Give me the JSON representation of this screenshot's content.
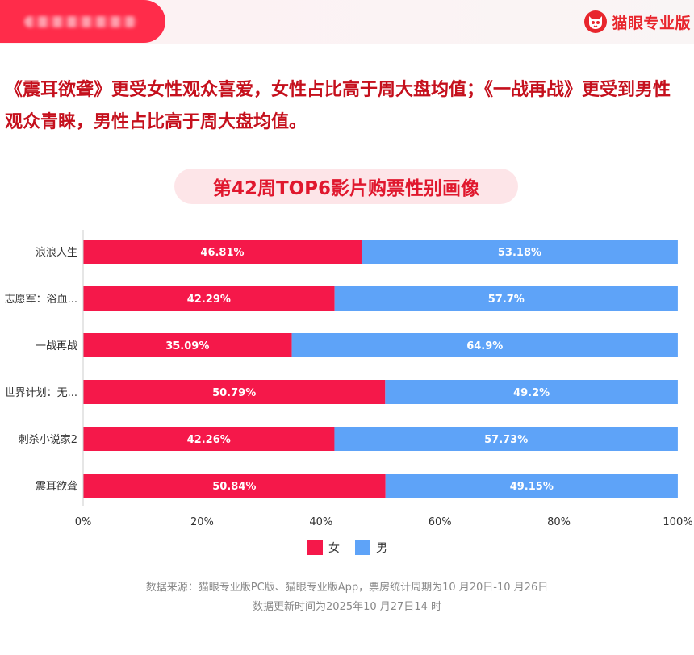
{
  "header": {
    "brand": "猫眼专业版",
    "brand_icon": "cat-eye-logo-icon",
    "brand_color": "#e8262d",
    "banner_color": "#ff2c4a"
  },
  "headline": "《震耳欲聋》更受女性观众喜爱，女性占比高于周大盘均值；《一战再战》更受到男性观众青睐，男性占比高于周大盘均值。",
  "chart_data": {
    "type": "bar",
    "orientation": "horizontal",
    "stacked": true,
    "title": "第42周TOP6影片购票性别画像",
    "categories": [
      "浪浪人生",
      "志愿军：浴血...",
      "一战再战",
      "世界计划：无...",
      "刺杀小说家2",
      "震耳欲聋"
    ],
    "series": [
      {
        "name": "女",
        "color": "#f5184a",
        "values": [
          46.81,
          42.29,
          35.09,
          50.79,
          42.26,
          50.84
        ],
        "labels": [
          "46.81%",
          "42.29%",
          "35.09%",
          "50.79%",
          "42.26%",
          "50.84%"
        ]
      },
      {
        "name": "男",
        "color": "#5ea3f8",
        "values": [
          53.18,
          57.7,
          64.9,
          49.2,
          57.73,
          49.15
        ],
        "labels": [
          "53.18%",
          "57.7%",
          "64.9%",
          "49.2%",
          "57.73%",
          "49.15%"
        ]
      }
    ],
    "xlim": [
      0,
      100
    ],
    "xticks": [
      "0%",
      "20%",
      "40%",
      "60%",
      "80%",
      "100%"
    ],
    "legend_position": "bottom-center",
    "grid": false
  },
  "footer": {
    "line1": "数据来源：猫眼专业版PC版、猫眼专业版App，票房统计周期为10 月20日-10 月26日",
    "line2": "数据更新时间为2025年10 月27日14 时"
  }
}
